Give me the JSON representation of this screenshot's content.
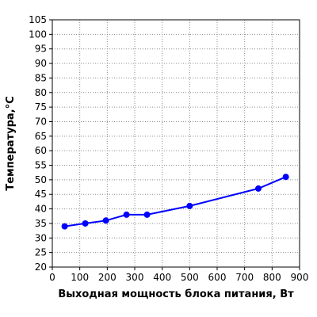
{
  "colors": {
    "series": "#0000ff",
    "grid": "#8c8c8c",
    "axis": "#000000",
    "background": "#ffffff"
  },
  "chart_data": {
    "type": "line",
    "title": "",
    "xlabel": "Выходная мощность блока питания, Вт",
    "ylabel": "Температура,°C",
    "xlim": [
      0,
      900
    ],
    "ylim": [
      20,
      105
    ],
    "x_ticks": [
      0,
      100,
      200,
      300,
      400,
      500,
      600,
      700,
      800,
      900
    ],
    "y_ticks": [
      20,
      25,
      30,
      35,
      40,
      45,
      50,
      55,
      60,
      65,
      70,
      75,
      80,
      85,
      90,
      95,
      100,
      105
    ],
    "grid": true,
    "grid_style": "dotted",
    "legend": "none",
    "series": [
      {
        "x": [
          45,
          120,
          195,
          270,
          345,
          500,
          750,
          850
        ],
        "y": [
          34,
          35,
          36,
          38,
          38,
          41,
          47,
          51
        ],
        "marker": "circle"
      }
    ]
  }
}
